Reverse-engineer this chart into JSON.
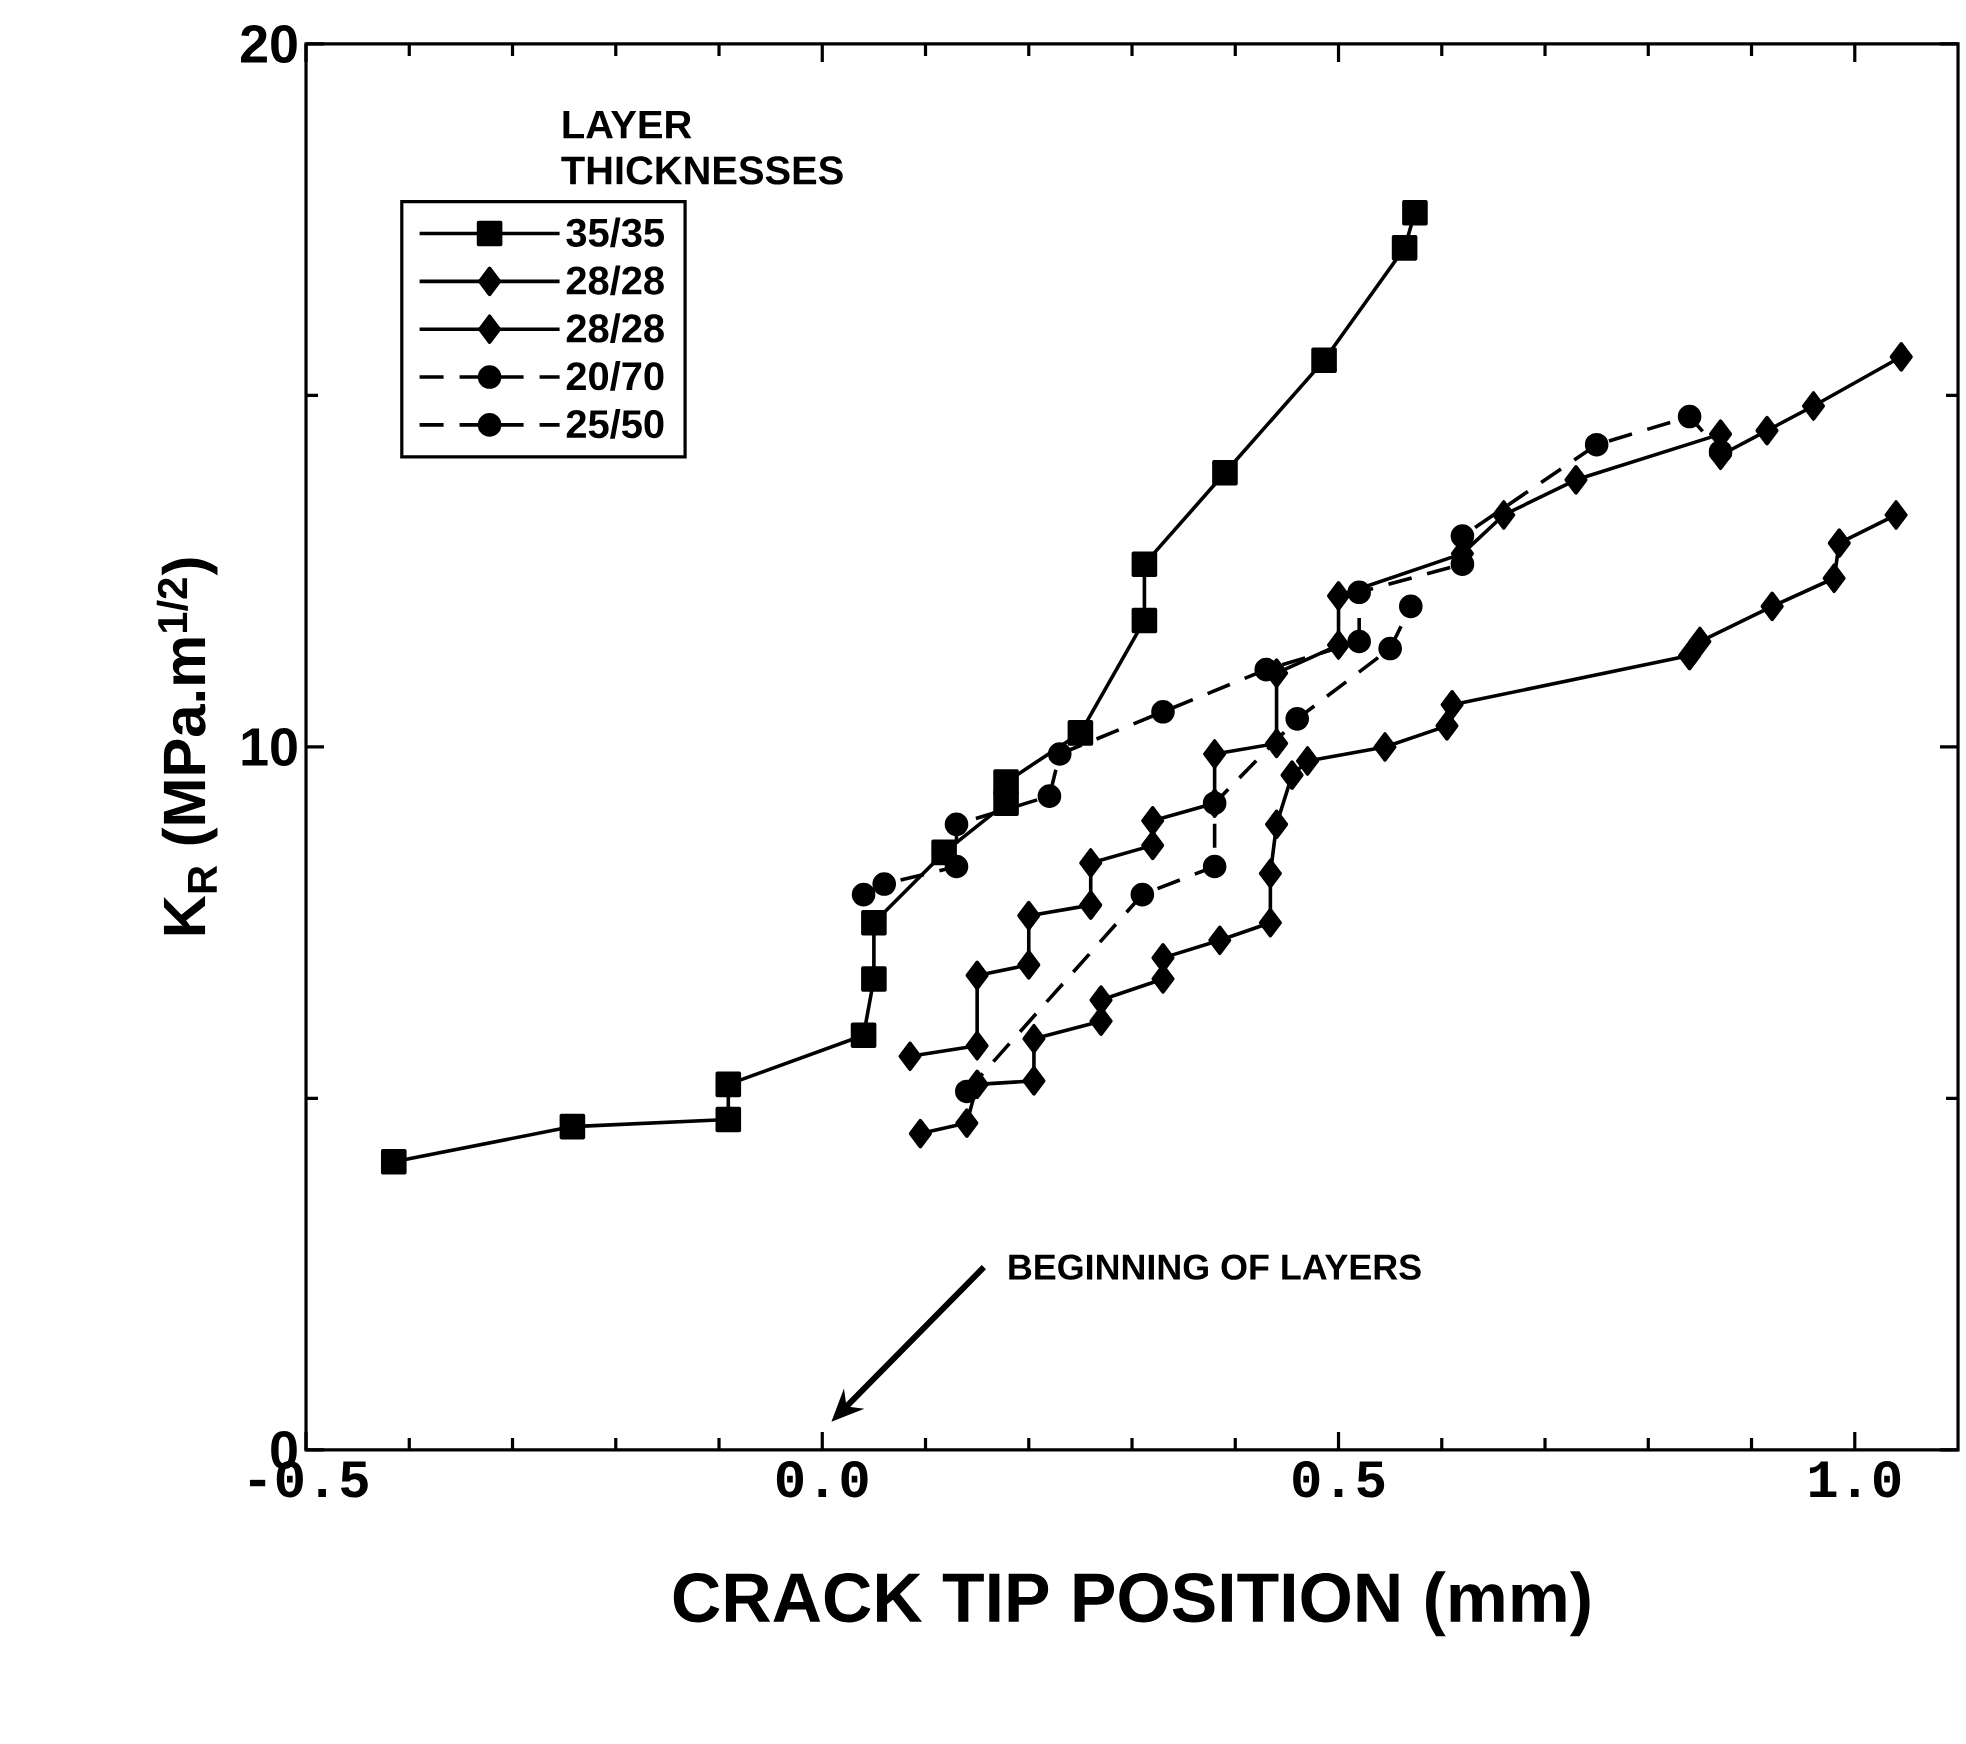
{
  "chart_data": {
    "type": "line",
    "xlabel": "CRACK TIP POSITION (mm)",
    "ylabel": "K$_{R}$ (MPa.m$^{1/2}$)",
    "legend_title": "LAYER THICKNESSES",
    "legend": "top left",
    "xlim": [
      -0.5,
      1.1
    ],
    "ylim": [
      0,
      20
    ],
    "xticks": [
      {
        "value": -0.5,
        "label": "-0.5"
      },
      {
        "value": -0.4,
        "label": null
      },
      {
        "value": -0.3,
        "label": null
      },
      {
        "value": -0.2,
        "label": null
      },
      {
        "value": -0.1,
        "label": null
      },
      {
        "value": 0,
        "label": "0.0"
      },
      {
        "value": 0.1,
        "label": null
      },
      {
        "value": 0.2,
        "label": null
      },
      {
        "value": 0.3,
        "label": null
      },
      {
        "value": 0.4,
        "label": null
      },
      {
        "value": 0.5,
        "label": "0.5"
      },
      {
        "value": 0.6,
        "label": null
      },
      {
        "value": 0.7,
        "label": null
      },
      {
        "value": 0.8,
        "label": null
      },
      {
        "value": 0.9,
        "label": null
      },
      {
        "value": 1.0,
        "label": "1.0"
      }
    ],
    "yticks": [
      0,
      {
        "value": 5,
        "label": null
      },
      10,
      {
        "value": 15,
        "label": null
      },
      20
    ],
    "annotations": [
      "BEGINNING OF LAYERS"
    ],
    "series": [
      {
        "name": "35/35",
        "color": "#000000",
        "marker": "square",
        "line_style": "solid",
        "x": [
          -0.415,
          -0.242,
          -0.091,
          -0.091,
          0.04,
          0.05,
          0.05,
          0.118,
          0.178,
          0.178,
          0.25,
          0.312,
          0.312,
          0.39,
          0.486,
          0.564,
          0.574
        ],
        "values": [
          4.1,
          4.6,
          4.7,
          5.2,
          5.9,
          6.7,
          7.5,
          8.5,
          9.2,
          9.5,
          10.2,
          11.8,
          12.6,
          13.9,
          15.5,
          17.1,
          17.6
        ]
      },
      {
        "name": "28/28",
        "color": "#000000",
        "marker": "diamond",
        "line_style": "solid",
        "x": [
          0.095,
          0.14,
          0.15,
          0.205,
          0.205,
          0.27,
          0.27,
          0.33,
          0.33,
          0.385,
          0.434,
          0.434,
          0.44,
          0.455,
          0.47,
          0.545,
          0.605,
          0.61,
          0.84,
          0.85,
          0.92,
          0.98,
          0.985,
          1.04
        ],
        "values": [
          4.5,
          4.65,
          5.2,
          5.25,
          5.85,
          6.1,
          6.4,
          6.7,
          7.0,
          7.25,
          7.5,
          8.2,
          8.9,
          9.6,
          9.8,
          10.0,
          10.3,
          10.6,
          11.3,
          11.5,
          12.0,
          12.4,
          12.9,
          13.3
        ]
      },
      {
        "name": "28/28",
        "color": "#000000",
        "marker": "diamond",
        "line_style": "solid",
        "x": [
          0.085,
          0.15,
          0.15,
          0.2,
          0.2,
          0.26,
          0.26,
          0.32,
          0.32,
          0.38,
          0.38,
          0.44,
          0.44,
          0.5,
          0.5,
          0.62,
          0.66,
          0.73,
          0.87,
          0.87,
          0.915,
          0.96,
          1.045
        ],
        "values": [
          5.6,
          5.75,
          6.75,
          6.9,
          7.6,
          7.75,
          8.35,
          8.6,
          8.95,
          9.2,
          9.9,
          10.05,
          11.05,
          11.45,
          12.15,
          12.75,
          13.3,
          13.8,
          14.45,
          14.15,
          14.5,
          14.85,
          15.55
        ]
      },
      {
        "name": "20/70",
        "color": "#000000",
        "marker": "circle",
        "line_style": "dashed",
        "x": [
          0.04,
          0.06,
          0.13,
          0.13,
          0.22,
          0.23,
          0.33,
          0.43,
          0.52,
          0.52,
          0.62,
          0.62,
          0.75,
          0.84,
          0.87
        ],
        "values": [
          7.9,
          8.05,
          8.3,
          8.9,
          9.3,
          9.9,
          10.5,
          11.1,
          11.5,
          12.2,
          12.6,
          13.0,
          14.3,
          14.7,
          14.2
        ]
      },
      {
        "name": "25/50",
        "color": "#000000",
        "marker": "circle",
        "line_style": "dashed",
        "x": [
          0.14,
          0.31,
          0.38,
          0.38,
          0.46,
          0.55,
          0.57
        ],
        "values": [
          5.1,
          7.9,
          8.3,
          9.2,
          10.4,
          11.4,
          12.0
        ]
      }
    ]
  }
}
